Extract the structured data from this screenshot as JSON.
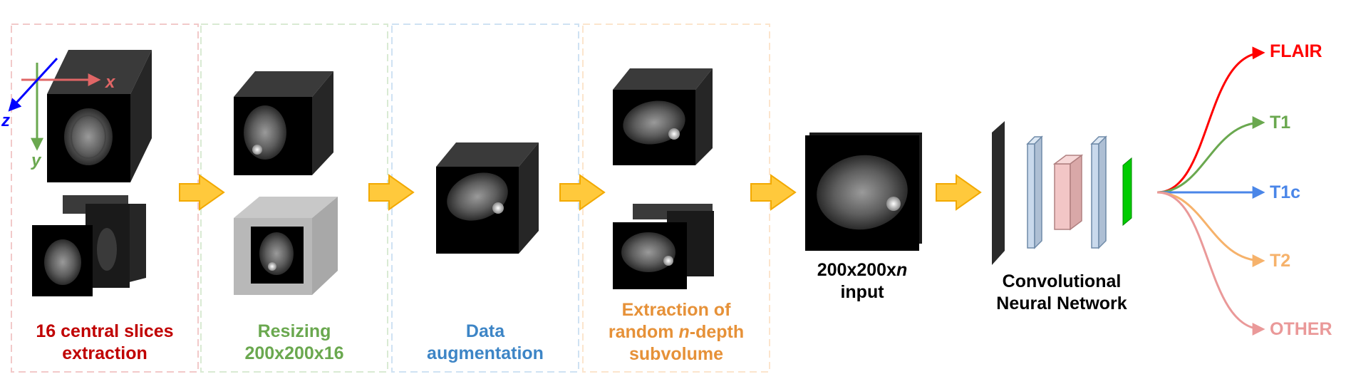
{
  "stages": [
    {
      "line1": "16 central slices",
      "line2": "extraction",
      "color": "#c00000",
      "border": "#f2c9c9"
    },
    {
      "line1": "Resizing",
      "line2": "200x200x16",
      "color": "#6aa84f",
      "border": "#d9ead3"
    },
    {
      "line1": "Data",
      "line2": "augmentation",
      "color": "#3d85c6",
      "border": "#cfe2f3"
    },
    {
      "line1": "Extraction of",
      "line2_pre": "random ",
      "line2_em": "n",
      "line2_post": "-depth",
      "line3": "subvolume",
      "color": "#e69138",
      "border": "#fce5cd"
    }
  ],
  "input": {
    "line1_pre": "200x200x",
    "line1_em": "n",
    "line2": "input"
  },
  "network": {
    "line1": "Convolutional",
    "line2": "Neural Network"
  },
  "axes": {
    "x": "x",
    "y": "y",
    "z": "z",
    "x_color": "#e06666",
    "y_color": "#6aa84f",
    "z_color": "#0000ff"
  },
  "outputs": [
    {
      "label": "FLAIR",
      "color": "#ff0000"
    },
    {
      "label": "T1",
      "color": "#6aa84f"
    },
    {
      "label": "T1c",
      "color": "#4a86e8"
    },
    {
      "label": "T2",
      "color": "#f6b26b"
    },
    {
      "label": "OTHER",
      "color": "#ea9999"
    }
  ],
  "arrow_color": "#ffc93c",
  "network_colors": {
    "conv": "#2a2a2a",
    "dense": "#c9d9ec",
    "pool": "#f2c6c6",
    "output": "#00cc00"
  }
}
